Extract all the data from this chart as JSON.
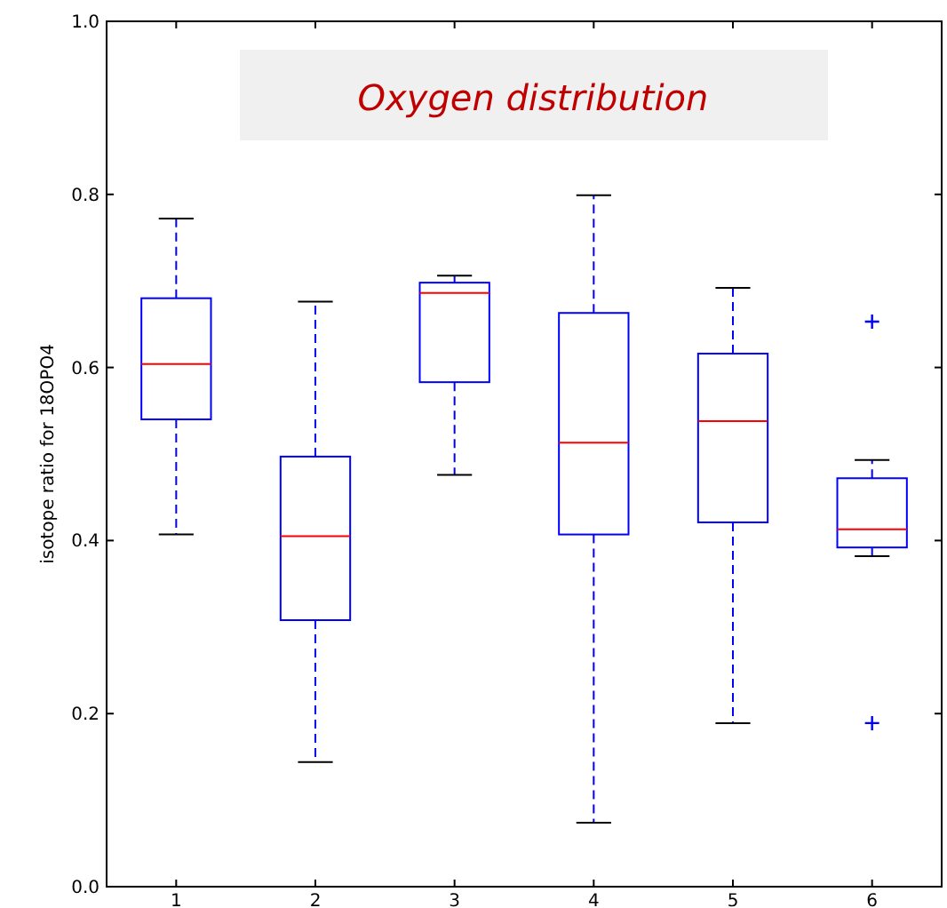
{
  "chart_data": {
    "type": "box",
    "title": "Oxygen distribution",
    "ylabel": "isotope ratio for 18OPO4",
    "categories": [
      "1",
      "2",
      "3",
      "4",
      "5",
      "6"
    ],
    "ylim": [
      0,
      1
    ],
    "yticks": [
      {
        "value": 0,
        "label": "0.0"
      },
      0.2,
      0.4,
      0.6,
      0.8,
      {
        "value": 1,
        "label": "1.0"
      }
    ],
    "grid": false,
    "color": "#0000ff",
    "marker": "cross",
    "boxes": [
      {
        "low": 0.407,
        "q1": 0.54,
        "median": 0.604,
        "q3": 0.68,
        "high": 0.772
      },
      {
        "low": 0.144,
        "q1": 0.308,
        "median": 0.405,
        "q3": 0.497,
        "high": 0.676
      },
      {
        "low": 0.476,
        "q1": 0.583,
        "median": 0.686,
        "q3": 0.698,
        "high": 0.706
      },
      {
        "low": 0.074,
        "q1": 0.407,
        "median": 0.513,
        "q3": 0.663,
        "high": 0.799
      },
      {
        "low": 0.189,
        "q1": 0.421,
        "median": 0.538,
        "q3": 0.616,
        "high": 0.692
      },
      {
        "low": 0.382,
        "q1": 0.392,
        "median": 0.413,
        "q3": 0.472,
        "high": 0.493,
        "outliers": [
          0.653,
          0.189
        ]
      }
    ]
  }
}
